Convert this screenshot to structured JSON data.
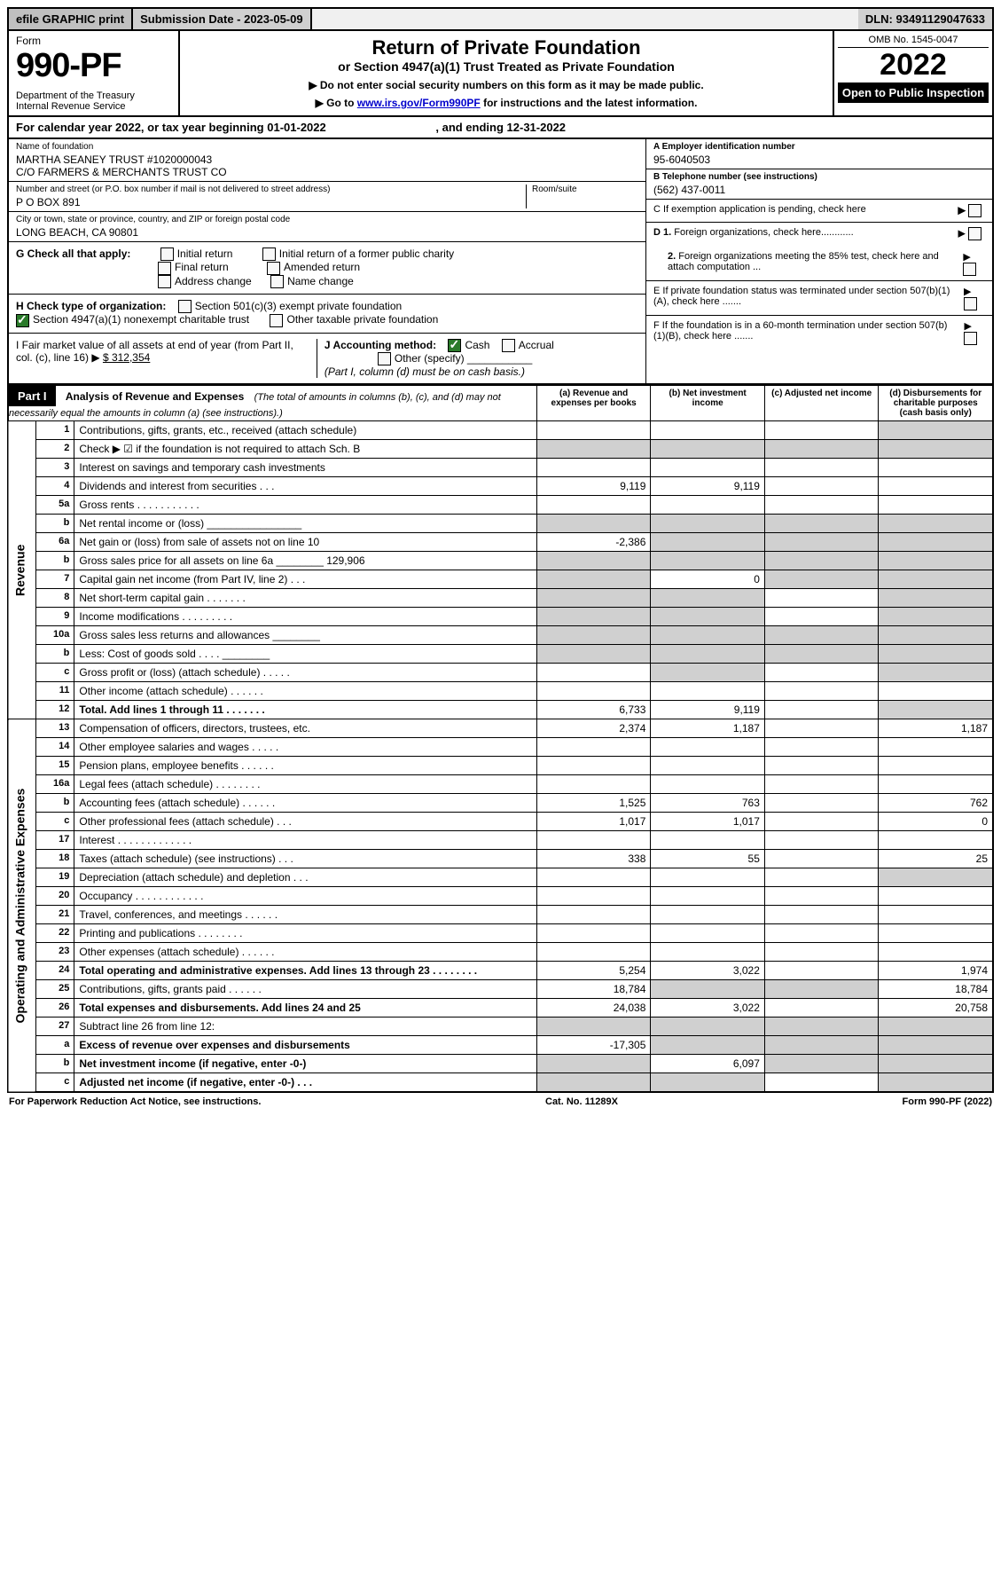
{
  "topbar": {
    "efile": "efile GRAPHIC print",
    "submission": "Submission Date - 2023-05-09",
    "dln": "DLN: 93491129047633"
  },
  "header": {
    "form_label": "Form",
    "form_number": "990-PF",
    "dept": "Department of the Treasury\nInternal Revenue Service",
    "title": "Return of Private Foundation",
    "subtitle": "or Section 4947(a)(1) Trust Treated as Private Foundation",
    "note1": "▶ Do not enter social security numbers on this form as it may be made public.",
    "note2_pre": "▶ Go to ",
    "note2_link": "www.irs.gov/Form990PF",
    "note2_post": " for instructions and the latest information.",
    "omb": "OMB No. 1545-0047",
    "year": "2022",
    "open": "Open to Public Inspection"
  },
  "cal": {
    "text_a": "For calendar year 2022, or tax year beginning ",
    "begin": "01-01-2022",
    "text_b": " , and ending ",
    "end": "12-31-2022"
  },
  "info": {
    "name_lbl": "Name of foundation",
    "name_val": "MARTHA SEANEY TRUST #1020000043\nC/O FARMERS & MERCHANTS TRUST CO",
    "addr_lbl": "Number and street (or P.O. box number if mail is not delivered to street address)",
    "addr_val": "P O BOX 891",
    "room_lbl": "Room/suite",
    "city_lbl": "City or town, state or province, country, and ZIP or foreign postal code",
    "city_val": "LONG BEACH, CA  90801",
    "ein_lbl": "A Employer identification number",
    "ein_val": "95-6040503",
    "tel_lbl": "B Telephone number (see instructions)",
    "tel_val": "(562) 437-0011",
    "c_lbl": "C If exemption application is pending, check here",
    "d1_lbl": "D 1. Foreign organizations, check here............",
    "d2_lbl": "2. Foreign organizations meeting the 85% test, check here and attach computation ...",
    "e_lbl": "E If private foundation status was terminated under section 507(b)(1)(A), check here .......",
    "f_lbl": "F If the foundation is in a 60-month termination under section 507(b)(1)(B), check here .......",
    "g_lbl": "G Check all that apply:",
    "g_opts": [
      "Initial return",
      "Initial return of a former public charity",
      "Final return",
      "Amended return",
      "Address change",
      "Name change"
    ],
    "h_lbl": "H Check type of organization:",
    "h_opts": [
      "Section 501(c)(3) exempt private foundation",
      "Section 4947(a)(1) nonexempt charitable trust",
      "Other taxable private foundation"
    ],
    "i_lbl": "I Fair market value of all assets at end of year (from Part II, col. (c), line 16) ▶",
    "i_val": "$  312,354",
    "j_lbl": "J Accounting method:",
    "j_cash": "Cash",
    "j_accrual": "Accrual",
    "j_other": "Other (specify)",
    "j_note": "(Part I, column (d) must be on cash basis.)"
  },
  "part1": {
    "label": "Part I",
    "title": "Analysis of Revenue and Expenses",
    "title_note": "(The total of amounts in columns (b), (c), and (d) may not necessarily equal the amounts in column (a) (see instructions).)",
    "col_a": "(a) Revenue and expenses per books",
    "col_b": "(b) Net investment income",
    "col_c": "(c) Adjusted net income",
    "col_d": "(d) Disbursements for charitable purposes (cash basis only)",
    "side_rev": "Revenue",
    "side_exp": "Operating and Administrative Expenses"
  },
  "rows": [
    {
      "n": "1",
      "d": "Contributions, gifts, grants, etc., received (attach schedule)",
      "a": "",
      "b": "",
      "c": "",
      "dd": "",
      "gray_d": true
    },
    {
      "n": "2",
      "d": "Check ▶ ☑ if the foundation is not required to attach Sch. B",
      "dots": true,
      "a": "",
      "b": "",
      "c": "",
      "dd": "",
      "gray_all": true
    },
    {
      "n": "3",
      "d": "Interest on savings and temporary cash investments",
      "a": "",
      "b": "",
      "c": "",
      "dd": ""
    },
    {
      "n": "4",
      "d": "Dividends and interest from securities   .   .   .",
      "a": "9,119",
      "b": "9,119",
      "c": "",
      "dd": ""
    },
    {
      "n": "5a",
      "d": "Gross rents   .   .   .   .   .   .   .   .   .   .   .",
      "a": "",
      "b": "",
      "c": "",
      "dd": ""
    },
    {
      "n": "b",
      "d": "Net rental income or (loss)  ________________",
      "a": "",
      "b": "",
      "c": "",
      "dd": "",
      "gray_all": true
    },
    {
      "n": "6a",
      "d": "Net gain or (loss) from sale of assets not on line 10",
      "a": "-2,386",
      "b": "",
      "c": "",
      "dd": "",
      "gray_bcd": true
    },
    {
      "n": "b",
      "d": "Gross sales price for all assets on line 6a ________ 129,906",
      "a": "",
      "b": "",
      "c": "",
      "dd": "",
      "gray_all": true
    },
    {
      "n": "7",
      "d": "Capital gain net income (from Part IV, line 2)   .   .   .",
      "a": "",
      "b": "0",
      "c": "",
      "dd": "",
      "gray_a": true,
      "gray_cd": true
    },
    {
      "n": "8",
      "d": "Net short-term capital gain   .   .   .   .   .   .   .",
      "a": "",
      "b": "",
      "c": "",
      "dd": "",
      "gray_ab": true,
      "gray_d": true
    },
    {
      "n": "9",
      "d": "Income modifications   .   .   .   .   .   .   .   .   .",
      "a": "",
      "b": "",
      "c": "",
      "dd": "",
      "gray_ab": true,
      "gray_d": true
    },
    {
      "n": "10a",
      "d": "Gross sales less returns and allowances  ________",
      "a": "",
      "b": "",
      "c": "",
      "dd": "",
      "gray_all": true
    },
    {
      "n": "b",
      "d": "Less: Cost of goods sold   .   .   .   .   ________",
      "a": "",
      "b": "",
      "c": "",
      "dd": "",
      "gray_all": true
    },
    {
      "n": "c",
      "d": "Gross profit or (loss) (attach schedule)   .   .   .   .   .",
      "a": "",
      "b": "",
      "c": "",
      "dd": "",
      "gray_b": true,
      "gray_d": true
    },
    {
      "n": "11",
      "d": "Other income (attach schedule)   .   .   .   .   .   .",
      "a": "",
      "b": "",
      "c": "",
      "dd": ""
    },
    {
      "n": "12",
      "d": "Total. Add lines 1 through 11   .   .   .   .   .   .   .",
      "bold": true,
      "a": "6,733",
      "b": "9,119",
      "c": "",
      "dd": "",
      "gray_d": true
    },
    {
      "n": "13",
      "d": "Compensation of officers, directors, trustees, etc.",
      "a": "2,374",
      "b": "1,187",
      "c": "",
      "dd": "1,187"
    },
    {
      "n": "14",
      "d": "Other employee salaries and wages   .   .   .   .   .",
      "a": "",
      "b": "",
      "c": "",
      "dd": ""
    },
    {
      "n": "15",
      "d": "Pension plans, employee benefits   .   .   .   .   .   .",
      "a": "",
      "b": "",
      "c": "",
      "dd": ""
    },
    {
      "n": "16a",
      "d": "Legal fees (attach schedule)   .   .   .   .   .   .   .   .",
      "a": "",
      "b": "",
      "c": "",
      "dd": ""
    },
    {
      "n": "b",
      "d": "Accounting fees (attach schedule)   .   .   .   .   .   .",
      "a": "1,525",
      "b": "763",
      "c": "",
      "dd": "762"
    },
    {
      "n": "c",
      "d": "Other professional fees (attach schedule)   .   .   .",
      "a": "1,017",
      "b": "1,017",
      "c": "",
      "dd": "0"
    },
    {
      "n": "17",
      "d": "Interest   .   .   .   .   .   .   .   .   .   .   .   .   .",
      "a": "",
      "b": "",
      "c": "",
      "dd": ""
    },
    {
      "n": "18",
      "d": "Taxes (attach schedule) (see instructions)   .   .   .",
      "a": "338",
      "b": "55",
      "c": "",
      "dd": "25"
    },
    {
      "n": "19",
      "d": "Depreciation (attach schedule) and depletion   .   .   .",
      "a": "",
      "b": "",
      "c": "",
      "dd": "",
      "gray_d": true
    },
    {
      "n": "20",
      "d": "Occupancy   .   .   .   .   .   .   .   .   .   .   .   .",
      "a": "",
      "b": "",
      "c": "",
      "dd": ""
    },
    {
      "n": "21",
      "d": "Travel, conferences, and meetings   .   .   .   .   .   .",
      "a": "",
      "b": "",
      "c": "",
      "dd": ""
    },
    {
      "n": "22",
      "d": "Printing and publications   .   .   .   .   .   .   .   .",
      "a": "",
      "b": "",
      "c": "",
      "dd": ""
    },
    {
      "n": "23",
      "d": "Other expenses (attach schedule)   .   .   .   .   .   .",
      "a": "",
      "b": "",
      "c": "",
      "dd": ""
    },
    {
      "n": "24",
      "d": "Total operating and administrative expenses. Add lines 13 through 23   .   .   .   .   .   .   .   .",
      "bold": true,
      "a": "5,254",
      "b": "3,022",
      "c": "",
      "dd": "1,974"
    },
    {
      "n": "25",
      "d": "Contributions, gifts, grants paid   .   .   .   .   .   .",
      "a": "18,784",
      "b": "",
      "c": "",
      "dd": "18,784",
      "gray_bc": true
    },
    {
      "n": "26",
      "d": "Total expenses and disbursements. Add lines 24 and 25",
      "bold": true,
      "a": "24,038",
      "b": "3,022",
      "c": "",
      "dd": "20,758"
    },
    {
      "n": "27",
      "d": "Subtract line 26 from line 12:",
      "a": "",
      "b": "",
      "c": "",
      "dd": "",
      "gray_all": true
    },
    {
      "n": "a",
      "d": "Excess of revenue over expenses and disbursements",
      "bold": true,
      "a": "-17,305",
      "b": "",
      "c": "",
      "dd": "",
      "gray_bcd": true
    },
    {
      "n": "b",
      "d": "Net investment income (if negative, enter -0-)",
      "bold": true,
      "a": "",
      "b": "6,097",
      "c": "",
      "dd": "",
      "gray_a": true,
      "gray_cd": true
    },
    {
      "n": "c",
      "d": "Adjusted net income (if negative, enter -0-)   .   .   .",
      "bold": true,
      "a": "",
      "b": "",
      "c": "",
      "dd": "",
      "gray_ab": true,
      "gray_d": true
    }
  ],
  "footer": {
    "left": "For Paperwork Reduction Act Notice, see instructions.",
    "mid": "Cat. No. 11289X",
    "right": "Form 990-PF (2022)"
  }
}
